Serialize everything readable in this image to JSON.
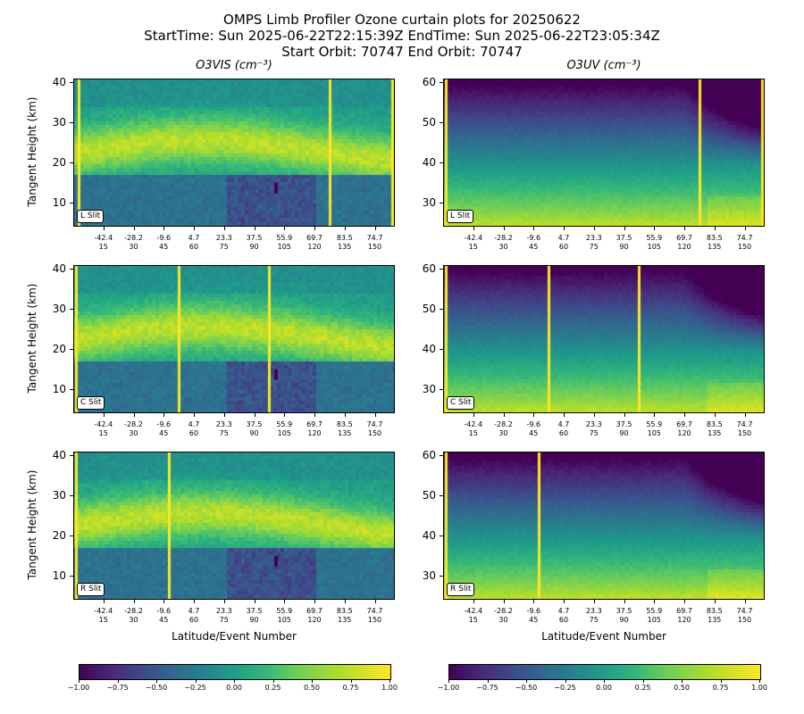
{
  "title": {
    "line1": "OMPS Limb Profiler Ozone curtain plots for 20250622",
    "line2": "StartTime: Sun 2025-06-22T22:15:39Z  EndTime: Sun 2025-06-22T23:05:34Z",
    "line3": "Start Orbit: 70747 End Orbit: 70747"
  },
  "chart_data": [
    {
      "type": "heatmap",
      "title": "O3VIS (cm⁻³)",
      "slit": "L Slit",
      "ylabel": "Tangent Height (km)",
      "xlabel": "",
      "ylim": [
        4,
        41
      ],
      "yticks": [
        10,
        20,
        30,
        40
      ],
      "x_event_range": [
        0,
        160
      ],
      "stripes_event": [
        2,
        127,
        158
      ],
      "xtick_events": [
        15,
        30,
        45,
        60,
        75,
        90,
        105,
        120,
        135,
        150
      ],
      "xtick_lats": [
        "-42.4",
        "-28.2",
        "-9.6",
        "4.7",
        "23.3",
        "37.5",
        "55.9",
        "69.7",
        "83.5",
        "74.7"
      ],
      "colormap": "viridis",
      "clim": [
        -1.0,
        1.0
      ]
    },
    {
      "type": "heatmap",
      "title": "O3UV (cm⁻³)",
      "slit": "L Slit",
      "ylabel": "",
      "xlabel": "",
      "ylim": [
        24,
        61
      ],
      "yticks": [
        30,
        40,
        50,
        60
      ],
      "x_event_range": [
        0,
        160
      ],
      "stripes_event": [
        1,
        127,
        158
      ],
      "xtick_events": [
        15,
        30,
        45,
        60,
        75,
        90,
        105,
        120,
        135,
        150
      ],
      "xtick_lats": [
        "-42.4",
        "-28.2",
        "-9.6",
        "4.7",
        "23.3",
        "37.5",
        "55.9",
        "69.7",
        "83.5",
        "74.7"
      ],
      "colormap": "viridis",
      "clim": [
        -1.0,
        1.0
      ]
    },
    {
      "type": "heatmap",
      "title": "",
      "slit": "C Slit",
      "ylabel": "Tangent Height (km)",
      "xlabel": "",
      "ylim": [
        4,
        41
      ],
      "yticks": [
        10,
        20,
        30,
        40
      ],
      "x_event_range": [
        0,
        160
      ],
      "stripes_event": [
        1,
        52,
        97
      ],
      "xtick_events": [
        15,
        30,
        45,
        60,
        75,
        90,
        105,
        120,
        135,
        150
      ],
      "xtick_lats": [
        "-42.4",
        "-28.2",
        "-9.6",
        "4.7",
        "23.3",
        "37.5",
        "55.9",
        "69.7",
        "83.5",
        "74.7"
      ],
      "colormap": "viridis",
      "clim": [
        -1.0,
        1.0
      ]
    },
    {
      "type": "heatmap",
      "title": "",
      "slit": "C Slit",
      "ylabel": "",
      "xlabel": "",
      "ylim": [
        24,
        61
      ],
      "yticks": [
        30,
        40,
        50,
        60
      ],
      "x_event_range": [
        0,
        160
      ],
      "stripes_event": [
        1,
        52,
        97
      ],
      "xtick_events": [
        15,
        30,
        45,
        60,
        75,
        90,
        105,
        120,
        135,
        150
      ],
      "xtick_lats": [
        "-42.4",
        "-28.2",
        "-9.6",
        "4.7",
        "23.3",
        "37.5",
        "55.9",
        "69.7",
        "83.5",
        "74.7"
      ],
      "colormap": "viridis",
      "clim": [
        -1.0,
        1.0
      ]
    },
    {
      "type": "heatmap",
      "title": "",
      "slit": "R Slit",
      "ylabel": "Tangent Height (km)",
      "xlabel": "Latitude/Event Number",
      "ylim": [
        4,
        41
      ],
      "yticks": [
        10,
        20,
        30,
        40
      ],
      "x_event_range": [
        0,
        160
      ],
      "stripes_event": [
        1,
        47
      ],
      "xtick_events": [
        15,
        30,
        45,
        60,
        75,
        90,
        105,
        120,
        135,
        150
      ],
      "xtick_lats": [
        "-42.4",
        "-28.2",
        "-9.6",
        "4.7",
        "23.3",
        "37.5",
        "55.9",
        "69.7",
        "83.5",
        "74.7"
      ],
      "colormap": "viridis",
      "clim": [
        -1.0,
        1.0
      ]
    },
    {
      "type": "heatmap",
      "title": "",
      "slit": "R Slit",
      "ylabel": "",
      "xlabel": "Latitude/Event Number",
      "ylim": [
        24,
        61
      ],
      "yticks": [
        30,
        40,
        50,
        60
      ],
      "x_event_range": [
        0,
        160
      ],
      "stripes_event": [
        1,
        47
      ],
      "xtick_events": [
        15,
        30,
        45,
        60,
        75,
        90,
        105,
        120,
        135,
        150
      ],
      "xtick_lats": [
        "-42.4",
        "-28.2",
        "-9.6",
        "4.7",
        "23.3",
        "37.5",
        "55.9",
        "69.7",
        "83.5",
        "74.7"
      ],
      "colormap": "viridis",
      "clim": [
        -1.0,
        1.0
      ]
    }
  ],
  "colorbars": [
    {
      "ticks": [
        "−1.00",
        "−0.75",
        "−0.50",
        "−0.25",
        "0.00",
        "0.25",
        "0.50",
        "0.75",
        "1.00"
      ]
    },
    {
      "ticks": [
        "−1.00",
        "−0.75",
        "−0.50",
        "−0.25",
        "0.00",
        "0.25",
        "0.50",
        "0.75",
        "1.00"
      ]
    }
  ],
  "stripe_color": "#fde725"
}
